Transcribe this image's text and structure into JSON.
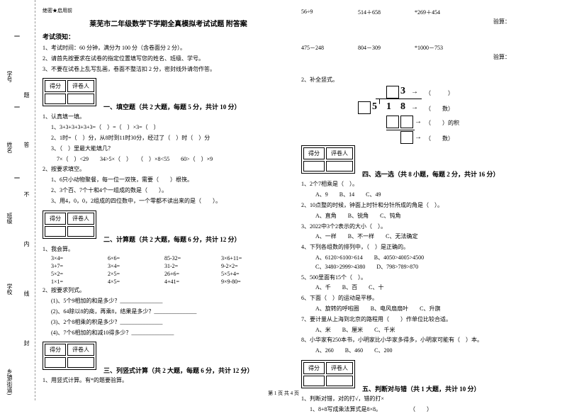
{
  "sidebar": {
    "labels": [
      "乡镇(街道)",
      "学校",
      "班级",
      "姓名",
      "学号"
    ],
    "vlabels": [
      "封",
      "线",
      "内",
      "不",
      "答",
      "题"
    ]
  },
  "header": "绝密★启用前",
  "title": "莱芜市二年级数学下学期全真模拟考试试题 附答案",
  "notice_title": "考试须知：",
  "notices": [
    "1、考试时间：60 分钟，满分为 100 分（含卷面分 2 分）。",
    "2、请首先按要求在试卷的指定位置填写您的姓名、班级、学号。",
    "3、不要在试卷上乱写乱画，卷面不整洁扣 2 分，密封线外请勿作答。"
  ],
  "score_labels": {
    "score": "得分",
    "grader": "评卷人"
  },
  "sections": {
    "s1": {
      "title": "一、填空题（共 2 大题，每题 5 分，共计 10 分）",
      "q1_title": "1、认真填一填。",
      "q1_items": [
        "1、3+3+3+3+3+3=（　）=（　）×3=（　）",
        "2、1时=（　）分，从8时到11时30分，经过了（　）时（　）分",
        "3、（　）里最大能填几？",
        "　7×（　）<29　　34>5×（　）　　（　）×8<55　　60>（　）×9"
      ],
      "q2_title": "2、按要求填空。",
      "q2_items": [
        "1、6只小动物聚餐，每一位一双筷，需要（　　）根筷。",
        "2、3个百、7个十和4个一组成的数是（　　）。",
        "3、用4，0，0，2组成的四位数中，一个零都不读出来的是（　　）。"
      ]
    },
    "s2": {
      "title": "二、计算题（共 2 大题，每题 6 分，共计 12 分）",
      "q1_title": "1、我会算。",
      "rows": [
        [
          "3×4=",
          "6×6=",
          "85-32=",
          "3×6+11="
        ],
        [
          "3+7=",
          "3×4=",
          "31-2=",
          "9-2×2="
        ],
        [
          "5×2=",
          "2×5=",
          "26+6=",
          "5×5+4="
        ],
        [
          "1×1=",
          "4×5=",
          "4+41=",
          "9×9-80="
        ]
      ],
      "q2_title": "2、按要求列式。",
      "q2_items": [
        "(1)、5个9相加的和是多少？_______________",
        "(2)、64除以8的商，再乘8，结果是多少？_______________",
        "(3)、2个8相乘的积是多少？_______________",
        "(4)、7个6相加的和减10得多少？_______________"
      ]
    },
    "s3": {
      "title": "三、列竖式计算（共 2 大题，每题 6 分，共计 12 分）",
      "q1": "1、用竖式计算。有*的题要验算。",
      "items": [
        "56÷9",
        "514＋658",
        "*269＋454",
        "验算：",
        "475－248",
        "804－309",
        "*1000－753",
        "验算："
      ]
    },
    "diagram": {
      "title": "2、补全竖式。",
      "labels": [
        "（　　　）",
        "（　　数）",
        "（　　）的积",
        "（　　数）"
      ],
      "nums": {
        "n5": "5",
        "n3": "3",
        "n1": "1",
        "n8": "8"
      }
    },
    "s4": {
      "title": "四、选一选（共 8 小题，每题 2 分，共计 16 分）",
      "items": [
        {
          "q": "1、2个7相乘是（　）。",
          "opts": "　A、9　　B、14　　C、49"
        },
        {
          "q": "2、10点整的时候，钟面上时针和分针所成的角是（　）。",
          "opts": "　A、直角　　B、锐角　　C、钝角"
        },
        {
          "q": "3、2022中3个2表示的大小（　）。",
          "opts": "　A、一样　　B、不一样　　C、无法确定"
        },
        {
          "q": "4、下列各组数的排列中，（　）是正确的。",
          "opts": "　A、6120>6100>614　　B、4050>4005>4500\n　C、3480>2999>4380　　D、798>789>870"
        },
        {
          "q": "5、500里面有15个（　）。",
          "opts": "　A、千　　B、百　　C、十"
        },
        {
          "q": "6、下面（　）的运动是平移。",
          "opts": "　A、旋转的呼啦圈　　B、电风扇扇叶　　C、升旗"
        },
        {
          "q": "7、要计量从上海到北京的路程用（　　）作单位比较合适。",
          "opts": "　A、米　　B、厘米　　C、千米"
        },
        {
          "q": "8、小华家有250本书，小明家比小华家多得多，小明家可能有（　）本。",
          "opts": "　A、260　　B、460　　C、200"
        }
      ]
    },
    "s5": {
      "title": "五、判断对与错（共 1 大题，共计 10 分）",
      "q1": "1、判断对错，对的打√，错的打×",
      "items": [
        "1、8+8写成乘法算式是8×8。　　　　　　（　　）"
      ]
    }
  },
  "page_num": "第 1 页 共 4 页"
}
